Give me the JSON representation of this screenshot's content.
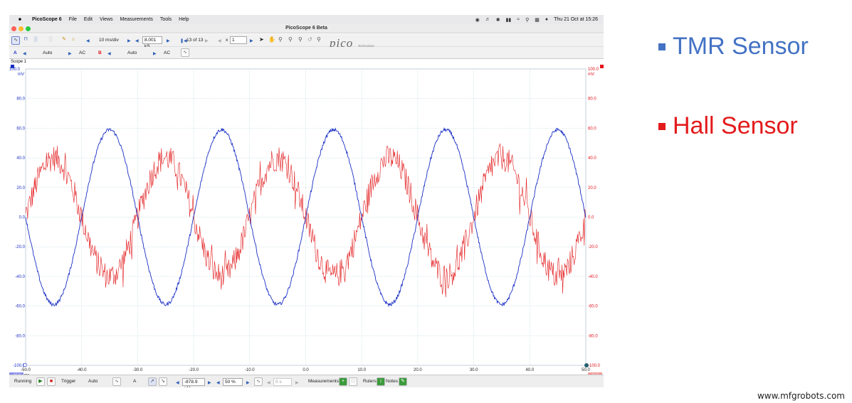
{
  "menubar": {
    "app_name": "PicoScope 6",
    "items": [
      "File",
      "Edit",
      "Views",
      "Measurements",
      "Tools",
      "Help"
    ],
    "datetime": "Thu 21 Oct at  15:26"
  },
  "window": {
    "title": "PicoScope 6 Beta"
  },
  "toolbar": {
    "timebase": "10 ms/div",
    "samples": "8.001 kS",
    "capture_index": "13 of 13",
    "zoom_prefix": "x",
    "zoom_value": "1",
    "logo_text": "pico",
    "logo_sub": "Technology"
  },
  "channels": {
    "a": {
      "label": "A",
      "range": "Auto",
      "coupling": "AC",
      "color": "#1a2fc4"
    },
    "b": {
      "label": "B",
      "range": "Auto",
      "coupling": "AC",
      "color": "#e3131b"
    }
  },
  "scope": {
    "tab_label": "Scope 1",
    "left_unit_top": "100.0",
    "left_unit": "mV",
    "right_unit_top": "100.0",
    "right_unit": "mV",
    "bottom_left_unit": "ms",
    "left_ticks": [
      "80.0",
      "60.0",
      "40.0",
      "20.0",
      "0.0",
      "-20.0",
      "-40.0",
      "-60.0",
      "-80.0",
      "-100.0"
    ],
    "right_ticks": [
      "80.0",
      "60.0",
      "40.0",
      "20.0",
      "0.0",
      "-20.0",
      "-40.0",
      "-60.0",
      "-80.0",
      "-100.0"
    ],
    "x_ticks": [
      "-50.0",
      "-40.0",
      "-30.0",
      "-20.0",
      "-10.0",
      "0.0",
      "10.0",
      "20.0",
      "30.0",
      "40.0",
      "50.0"
    ],
    "bottom_left_badge": "-11.0",
    "bottom_right_badge": "11.0"
  },
  "statusbar": {
    "running": "Running",
    "trigger_label": "Trigger",
    "trigger_mode": "Auto",
    "trigger_channel": "A",
    "trigger_level": "-878.9 µV",
    "pretrigger": "50 %",
    "delay": "0 s",
    "measurements": "Measurements",
    "rulers": "Rulers",
    "notes": "Notes"
  },
  "legend": {
    "tmr": {
      "label": "TMR Sensor",
      "color": "#4472c4"
    },
    "hall": {
      "label": "Hall Sensor",
      "color": "#e31a1c"
    }
  },
  "watermark": "www.mfgrobots.com",
  "chart_data": {
    "type": "line",
    "xlabel": "ms",
    "ylabel": "mV",
    "xlim": [
      -50,
      50
    ],
    "ylim": [
      -100,
      100
    ],
    "grid": true,
    "series": [
      {
        "name": "TMR Sensor",
        "color": "#1a2fc4",
        "amplitude": 59,
        "period_ms": 20,
        "zero_cross_rising_ms": -40,
        "noise": 1.2
      },
      {
        "name": "Hall Sensor",
        "color": "#e31a1c",
        "amplitude": 40,
        "period_ms": 20,
        "zero_cross_rising_ms": -50,
        "noise": 9
      }
    ]
  }
}
